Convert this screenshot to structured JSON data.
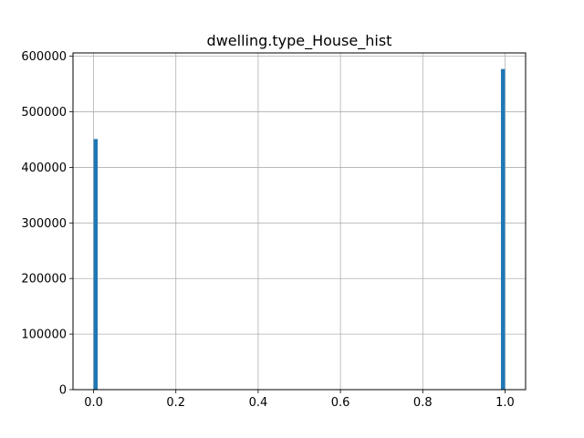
{
  "chart_data": {
    "type": "bar",
    "title": "dwelling.type_House_hist",
    "xlabel": "",
    "ylabel": "",
    "xlim": [
      -0.05,
      1.05
    ],
    "ylim": [
      0,
      606000
    ],
    "grid": true,
    "bar_color": "#1f77b4",
    "bins": [
      {
        "x0": 0.0,
        "x1": 0.01,
        "value": 451000
      },
      {
        "x0": 0.99,
        "x1": 1.0,
        "value": 577000
      }
    ],
    "x_ticks": [
      {
        "value": 0.0,
        "label": "0.0"
      },
      {
        "value": 0.2,
        "label": "0.2"
      },
      {
        "value": 0.4,
        "label": "0.4"
      },
      {
        "value": 0.6,
        "label": "0.6"
      },
      {
        "value": 0.8,
        "label": "0.8"
      },
      {
        "value": 1.0,
        "label": "1.0"
      }
    ],
    "y_ticks": [
      {
        "value": 0,
        "label": "0"
      },
      {
        "value": 100000,
        "label": "100000"
      },
      {
        "value": 200000,
        "label": "200000"
      },
      {
        "value": 300000,
        "label": "300000"
      },
      {
        "value": 400000,
        "label": "400000"
      },
      {
        "value": 500000,
        "label": "500000"
      },
      {
        "value": 600000,
        "label": "600000"
      }
    ]
  }
}
